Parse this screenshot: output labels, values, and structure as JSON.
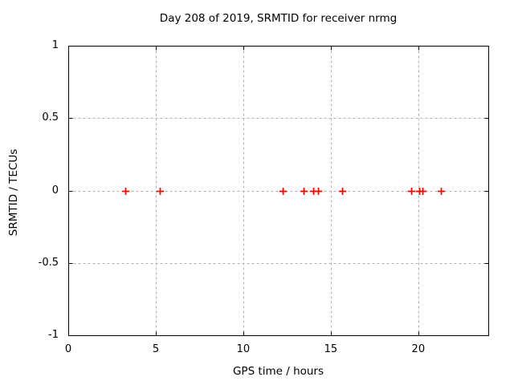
{
  "title": "Day 208 of 2019, SRMTID for receiver nrmg",
  "colors": {
    "marker": "#ff0000",
    "grid": "#b0b0b0",
    "axis": "#000000",
    "background": "#ffffff",
    "text": "#000000"
  },
  "chart_data": {
    "type": "scatter",
    "title": "Day 208 of 2019, SRMTID for receiver nrmg",
    "xlabel": "GPS time / hours",
    "ylabel": "SRMTID / TECUs",
    "xlim": [
      0,
      24
    ],
    "ylim": [
      -1,
      1
    ],
    "xticks": [
      0,
      5,
      10,
      15,
      20
    ],
    "yticks": [
      1,
      0.5,
      0,
      -0.5,
      -1
    ],
    "grid": true,
    "legend": "none",
    "series": [
      {
        "name": "SRMTID",
        "marker": "plus",
        "color": "#ff0000",
        "x": [
          3.25,
          5.23,
          12.24,
          13.43,
          14.0,
          14.27,
          15.64,
          19.58,
          20.05,
          20.22,
          21.29
        ],
        "y": [
          0,
          0,
          0,
          0,
          0,
          0,
          0,
          0,
          0,
          0,
          0
        ]
      }
    ]
  }
}
